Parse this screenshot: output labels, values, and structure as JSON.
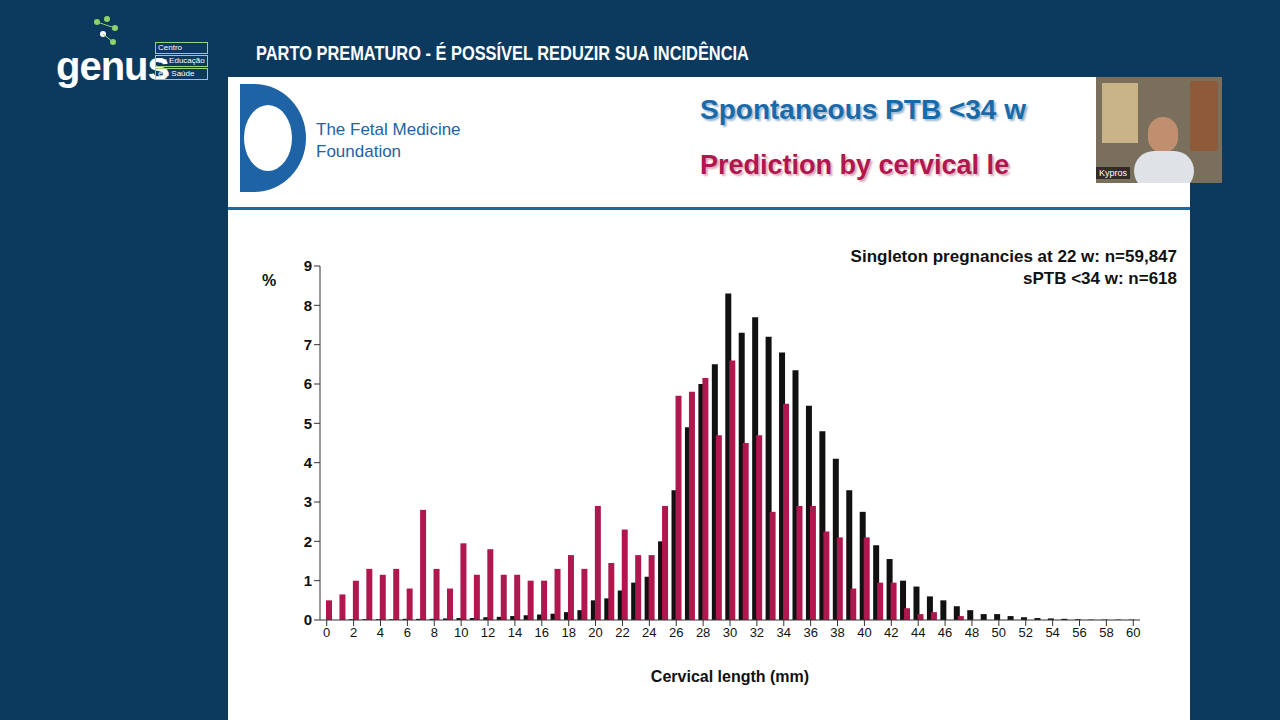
{
  "slide": {
    "header": "PARTO PREMATURO - É POSSÍVEL REDUZIR SUA INCIDÊNCIA",
    "logo": {
      "name": "genus",
      "lines": [
        "Centro",
        "de Educação",
        "em Saúde"
      ]
    },
    "foundation": [
      "The Fetal Medicine",
      "Foundation"
    ],
    "title": "Spontaneous PTB <34 w",
    "subtitle": "Prediction by cervical le",
    "speaker": "Kypros"
  },
  "chart_data": {
    "type": "bar",
    "xlabel": "Cervical length (mm)",
    "ylabel": "%",
    "annotations": [
      "Singleton pregnancies at 22 w: n=59,847",
      "sPTB <34 w: n=618"
    ],
    "x": [
      0,
      1,
      2,
      3,
      4,
      5,
      6,
      7,
      8,
      9,
      10,
      11,
      12,
      13,
      14,
      15,
      16,
      17,
      18,
      19,
      20,
      21,
      22,
      23,
      24,
      25,
      26,
      27,
      28,
      29,
      30,
      31,
      32,
      33,
      34,
      35,
      36,
      37,
      38,
      39,
      40,
      41,
      42,
      43,
      44,
      45,
      46,
      47,
      48,
      49,
      50,
      51,
      52,
      53,
      54,
      55,
      56,
      57,
      58,
      59,
      60
    ],
    "series": [
      {
        "color": "#111111",
        "values": [
          0,
          0,
          0.02,
          0.02,
          0.02,
          0.02,
          0.03,
          0.03,
          0.03,
          0.04,
          0.05,
          0.05,
          0.07,
          0.08,
          0.1,
          0.12,
          0.14,
          0.16,
          0.2,
          0.25,
          0.5,
          0.55,
          0.75,
          0.95,
          1.1,
          2.0,
          3.3,
          4.9,
          6.0,
          6.5,
          8.3,
          7.3,
          7.7,
          7.2,
          6.8,
          6.35,
          5.45,
          4.8,
          4.1,
          3.3,
          2.75,
          1.9,
          1.55,
          1.0,
          0.85,
          0.6,
          0.5,
          0.35,
          0.25,
          0.15,
          0.15,
          0.1,
          0.07,
          0.05,
          0.04,
          0.03,
          0.02,
          0.01,
          0.01,
          0.01,
          0.01
        ]
      },
      {
        "color": "#b0174e",
        "values": [
          0.5,
          0.65,
          1.0,
          1.3,
          1.15,
          1.3,
          0.8,
          2.8,
          1.3,
          0.8,
          1.95,
          1.15,
          1.8,
          1.15,
          1.15,
          1.0,
          1.0,
          1.3,
          1.65,
          1.3,
          2.9,
          1.45,
          2.3,
          1.65,
          1.65,
          2.9,
          5.7,
          5.8,
          6.15,
          4.7,
          6.6,
          4.5,
          4.7,
          2.75,
          5.5,
          2.9,
          2.9,
          2.25,
          2.1,
          0.8,
          2.1,
          0.95,
          0.95,
          0.3,
          0.15,
          0.2,
          0,
          0.1,
          0,
          0,
          0,
          0,
          0,
          0,
          0,
          0,
          0,
          0,
          0,
          0,
          0
        ]
      }
    ],
    "xlim": [
      -0.5,
      60.5
    ],
    "xticks": [
      0,
      2,
      4,
      6,
      8,
      10,
      12,
      14,
      16,
      18,
      20,
      22,
      24,
      26,
      28,
      30,
      32,
      34,
      36,
      38,
      40,
      42,
      44,
      46,
      48,
      50,
      52,
      54,
      56,
      58,
      60
    ],
    "ylim": [
      0,
      9
    ],
    "yticks": [
      0,
      1,
      2,
      3,
      4,
      5,
      6,
      7,
      8,
      9
    ],
    "grid": false
  }
}
